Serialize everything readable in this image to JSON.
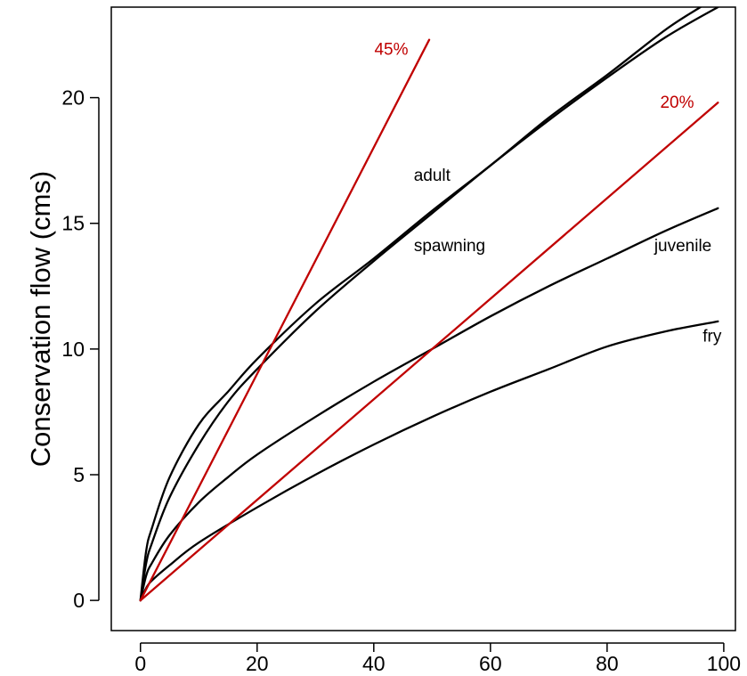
{
  "chart_data": {
    "type": "line",
    "title": "",
    "xlabel": "",
    "ylabel": "Conservation flow (cms)",
    "xlim": [
      -5,
      102
    ],
    "ylim": [
      -1.2,
      23.6
    ],
    "xticks": [
      0,
      20,
      40,
      60,
      80,
      100
    ],
    "yticks": [
      0,
      5,
      10,
      15,
      20
    ],
    "grid": false,
    "legend": "none",
    "series": [
      {
        "name": "adult",
        "color": "#000000",
        "points": [
          [
            0,
            0
          ],
          [
            1,
            2.0
          ],
          [
            2,
            2.9
          ],
          [
            5,
            4.9
          ],
          [
            10,
            7.0
          ],
          [
            15,
            8.3
          ],
          [
            20,
            9.6
          ],
          [
            30,
            11.8
          ],
          [
            40,
            13.6
          ],
          [
            50,
            15.5
          ],
          [
            60,
            17.3
          ],
          [
            70,
            19.2
          ],
          [
            80,
            20.9
          ],
          [
            90,
            22.7
          ],
          [
            96,
            23.6
          ]
        ]
      },
      {
        "name": "spawning",
        "color": "#000000",
        "points": [
          [
            0,
            0
          ],
          [
            1,
            1.5
          ],
          [
            2,
            2.3
          ],
          [
            5,
            4.1
          ],
          [
            10,
            6.2
          ],
          [
            15,
            7.9
          ],
          [
            20,
            9.2
          ],
          [
            30,
            11.5
          ],
          [
            40,
            13.5
          ],
          [
            50,
            15.4
          ],
          [
            60,
            17.3
          ],
          [
            70,
            19.1
          ],
          [
            80,
            20.8
          ],
          [
            90,
            22.4
          ],
          [
            99,
            23.6
          ]
        ]
      },
      {
        "name": "juvenile",
        "color": "#000000",
        "points": [
          [
            0,
            0
          ],
          [
            1,
            1.0
          ],
          [
            2,
            1.5
          ],
          [
            5,
            2.6
          ],
          [
            10,
            3.9
          ],
          [
            15,
            4.9
          ],
          [
            20,
            5.8
          ],
          [
            30,
            7.3
          ],
          [
            40,
            8.7
          ],
          [
            50,
            10.0
          ],
          [
            60,
            11.3
          ],
          [
            70,
            12.5
          ],
          [
            80,
            13.6
          ],
          [
            90,
            14.7
          ],
          [
            99,
            15.6
          ]
        ]
      },
      {
        "name": "fry",
        "color": "#000000",
        "points": [
          [
            0,
            0
          ],
          [
            1,
            0.5
          ],
          [
            2,
            0.8
          ],
          [
            5,
            1.4
          ],
          [
            10,
            2.3
          ],
          [
            20,
            3.7
          ],
          [
            30,
            5.0
          ],
          [
            40,
            6.2
          ],
          [
            50,
            7.3
          ],
          [
            60,
            8.3
          ],
          [
            70,
            9.2
          ],
          [
            80,
            10.1
          ],
          [
            90,
            10.7
          ],
          [
            99,
            11.1
          ]
        ]
      },
      {
        "name": "45%",
        "color": "#c00000",
        "points": [
          [
            0,
            0
          ],
          [
            49.5,
            22.3
          ]
        ]
      },
      {
        "name": "20%",
        "color": "#c00000",
        "points": [
          [
            0,
            0
          ],
          [
            99,
            19.8
          ]
        ]
      }
    ],
    "annotations": [
      {
        "text": "adult",
        "x": 50,
        "y": 16.7,
        "color": "#000000",
        "anchor": "middle"
      },
      {
        "text": "spawning",
        "x": 53,
        "y": 13.9,
        "color": "#000000",
        "anchor": "middle"
      },
      {
        "text": "juvenile",
        "x": 93,
        "y": 13.9,
        "color": "#000000",
        "anchor": "middle"
      },
      {
        "text": "fry",
        "x": 98,
        "y": 10.3,
        "color": "#000000",
        "anchor": "middle"
      },
      {
        "text": "45%",
        "x": 43,
        "y": 21.7,
        "color": "#c00000",
        "anchor": "middle"
      },
      {
        "text": "20%",
        "x": 92,
        "y": 19.6,
        "color": "#c00000",
        "anchor": "middle"
      }
    ]
  }
}
